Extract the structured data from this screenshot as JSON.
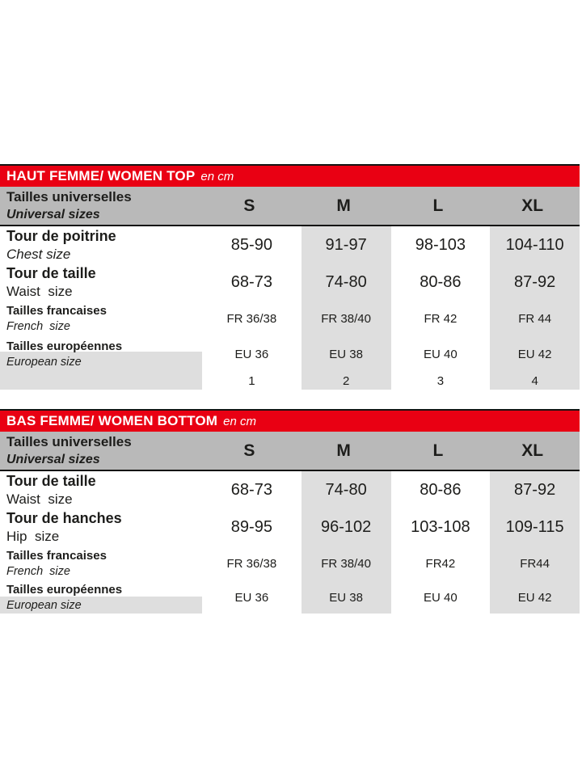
{
  "colors": {
    "band_red": "#e90013",
    "header_gray": "#b9b9b9",
    "column_gray": "#dedede",
    "border_black": "#141413",
    "band_text": "#ffffff",
    "text": "#1d1d1b"
  },
  "chart_data": [
    {
      "type": "table",
      "title": "HAUT FEMME/ WOMEN TOP",
      "unit": "en cm",
      "corner_label": {
        "fr": "Tailles universelles",
        "en": "Universal sizes"
      },
      "columns": [
        "S",
        "M",
        "L",
        "XL"
      ],
      "rows": [
        {
          "label_fr": "Tour de poitrine",
          "label_en": "Chest size",
          "en_italic": true,
          "style": "large",
          "gray_label": false,
          "values": [
            "85-90",
            "91-97",
            "98-103",
            "104-110"
          ]
        },
        {
          "label_fr": "Tour de taille",
          "label_en": "Waist  size",
          "en_italic": false,
          "style": "large",
          "gray_label": false,
          "values": [
            "68-73",
            "74-80",
            "80-86",
            "87-92"
          ]
        },
        {
          "label_fr": "Tailles francaises",
          "label_en": "French  size",
          "en_italic": true,
          "style": "small",
          "gray_label": false,
          "values": [
            "FR 36/38",
            "FR 38/40",
            "FR 42",
            "FR 44"
          ]
        },
        {
          "label_fr": "Tailles européennes",
          "label_en": "European size",
          "en_italic": true,
          "style": "small",
          "gray_label": true,
          "values": [
            "EU 36",
            "EU 38",
            "EU 40",
            "EU 42"
          ]
        }
      ],
      "footer_numbers": [
        "1",
        "2",
        "3",
        "4"
      ]
    },
    {
      "type": "table",
      "title": "BAS FEMME/ WOMEN BOTTOM",
      "unit": "en cm",
      "corner_label": {
        "fr": "Tailles universelles",
        "en": "Universal sizes"
      },
      "columns": [
        "S",
        "M",
        "L",
        "XL"
      ],
      "rows": [
        {
          "label_fr": "Tour de taille",
          "label_en": "Waist  size",
          "en_italic": false,
          "style": "large",
          "gray_label": false,
          "values": [
            "68-73",
            "74-80",
            "80-86",
            "87-92"
          ]
        },
        {
          "label_fr": "Tour de hanches",
          "label_en": "Hip  size",
          "en_italic": false,
          "style": "large",
          "gray_label": false,
          "values": [
            "89-95",
            "96-102",
            "103-108",
            "109-115"
          ]
        },
        {
          "label_fr": "Tailles francaises",
          "label_en": "French  size",
          "en_italic": true,
          "style": "small",
          "gray_label": false,
          "values": [
            "FR 36/38",
            "FR 38/40",
            "FR42",
            "FR44"
          ]
        },
        {
          "label_fr": "Tailles européennes",
          "label_en": "European size",
          "en_italic": true,
          "style": "last2",
          "gray_label": true,
          "values": [
            "EU 36",
            "EU 38",
            "EU 40",
            "EU 42"
          ]
        }
      ],
      "footer_numbers": []
    }
  ]
}
